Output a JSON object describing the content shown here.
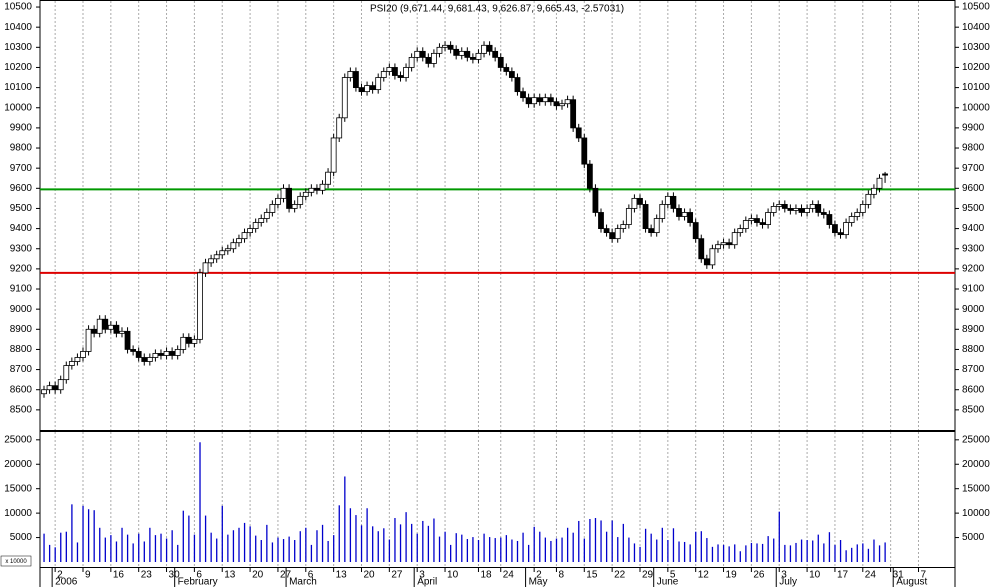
{
  "chart_data": [
    {
      "type": "candlestick",
      "title": "PSI20 (9,671.44, 9,681.43, 9,626.87, 9,665.43, -2.57031)",
      "categories": [
        "2005-12-29",
        "2005-12-30",
        "2006-01-02",
        "2006-01-03",
        "2006-01-04",
        "2006-01-05",
        "2006-01-06",
        "2006-01-09",
        "2006-01-10",
        "2006-01-11",
        "2006-01-12",
        "2006-01-13",
        "2006-01-16",
        "2006-01-17",
        "2006-01-18",
        "2006-01-19",
        "2006-01-20",
        "2006-01-23",
        "2006-01-24",
        "2006-01-25",
        "2006-01-26",
        "2006-01-27",
        "2006-01-30",
        "2006-01-31",
        "2006-02-01",
        "2006-02-02",
        "2006-02-03",
        "2006-02-06",
        "2006-02-07",
        "2006-02-08",
        "2006-02-09",
        "2006-02-10",
        "2006-02-13",
        "2006-02-14",
        "2006-02-15",
        "2006-02-16",
        "2006-02-17",
        "2006-02-20",
        "2006-02-21",
        "2006-02-22",
        "2006-02-23",
        "2006-02-24",
        "2006-02-27",
        "2006-02-28",
        "2006-03-01",
        "2006-03-02",
        "2006-03-03",
        "2006-03-06",
        "2006-03-07",
        "2006-03-08",
        "2006-03-09",
        "2006-03-10",
        "2006-03-13",
        "2006-03-14",
        "2006-03-15",
        "2006-03-16",
        "2006-03-17",
        "2006-03-20",
        "2006-03-21",
        "2006-03-22",
        "2006-03-23",
        "2006-03-24",
        "2006-03-27",
        "2006-03-28",
        "2006-03-29",
        "2006-03-30",
        "2006-03-31",
        "2006-04-03",
        "2006-04-04",
        "2006-04-05",
        "2006-04-06",
        "2006-04-07",
        "2006-04-10",
        "2006-04-11",
        "2006-04-12",
        "2006-04-13",
        "2006-04-14",
        "2006-04-17",
        "2006-04-18",
        "2006-04-19",
        "2006-04-20",
        "2006-04-21",
        "2006-04-24",
        "2006-04-25",
        "2006-04-26",
        "2006-04-27",
        "2006-04-28",
        "2006-05-01",
        "2006-05-02",
        "2006-05-03",
        "2006-05-04",
        "2006-05-05",
        "2006-05-08",
        "2006-05-09",
        "2006-05-10",
        "2006-05-11",
        "2006-05-12",
        "2006-05-15",
        "2006-05-16",
        "2006-05-17",
        "2006-05-18",
        "2006-05-19",
        "2006-05-22",
        "2006-05-23",
        "2006-05-24",
        "2006-05-25",
        "2006-05-26",
        "2006-05-29",
        "2006-05-30",
        "2006-05-31",
        "2006-06-01",
        "2006-06-02",
        "2006-06-05",
        "2006-06-06",
        "2006-06-07",
        "2006-06-08",
        "2006-06-09",
        "2006-06-12",
        "2006-06-13",
        "2006-06-14",
        "2006-06-15",
        "2006-06-16",
        "2006-06-19",
        "2006-06-20",
        "2006-06-21",
        "2006-06-22",
        "2006-06-23",
        "2006-06-26",
        "2006-06-27",
        "2006-06-28",
        "2006-06-29",
        "2006-06-30",
        "2006-07-03",
        "2006-07-04",
        "2006-07-05",
        "2006-07-06",
        "2006-07-07",
        "2006-07-10",
        "2006-07-11",
        "2006-07-12",
        "2006-07-13",
        "2006-07-14",
        "2006-07-17",
        "2006-07-18",
        "2006-07-19",
        "2006-07-20",
        "2006-07-21",
        "2006-07-24",
        "2006-07-25",
        "2006-07-26",
        "2006-07-27",
        "2006-07-28",
        "2006-07-31",
        "2006-08-01",
        "2006-08-02",
        "2006-08-03",
        "2006-08-04",
        "2006-08-07",
        "2006-08-08",
        "2006-08-09",
        "2006-08-10",
        "2006-08-11",
        "2006-08-14",
        "2006-08-15"
      ],
      "open": [
        8580,
        8600,
        8620,
        8600,
        8650,
        8720,
        8740,
        8760,
        8790,
        8900,
        8880,
        8950,
        8900,
        8920,
        8880,
        8890,
        8800,
        8790,
        8760,
        8740,
        8760,
        8780,
        8770,
        8790,
        8770,
        8800,
        8860,
        8830,
        8850,
        9180,
        9230,
        9250,
        9270,
        9290,
        9300,
        9330,
        9350,
        9380,
        9400,
        9430,
        9450,
        9480,
        9520,
        9550,
        9600,
        9500,
        9520,
        9560,
        9580,
        9600,
        9590,
        9620,
        9680,
        9850,
        9950,
        10150,
        10180,
        10100,
        10080,
        10110,
        10090,
        10150,
        10180,
        10200,
        10160,
        10150,
        10200,
        10250,
        10280,
        10250,
        10220,
        10270,
        10300,
        10310,
        10290,
        10260,
        10280,
        10250,
        10240,
        10270,
        10310,
        10280,
        10250,
        10200,
        10180,
        10150,
        10080,
        10050,
        10020,
        10050,
        10030,
        10050,
        10030,
        10010,
        10020,
        10040,
        9900,
        9850,
        9720,
        9600,
        9480,
        9400,
        9380,
        9350,
        9400,
        9420,
        9500,
        9550,
        9520,
        9400,
        9380,
        9450,
        9520,
        9560,
        9500,
        9460,
        9480,
        9430,
        9350,
        9250,
        9220,
        9300,
        9320,
        9330,
        9320,
        9380,
        9400,
        9440,
        9450,
        9430,
        9420,
        9480,
        9510,
        9520,
        9500,
        9490,
        9500,
        9480,
        9500,
        9520,
        9480,
        9470,
        9420,
        9380,
        9370,
        9430,
        9460,
        9480,
        9520,
        9570,
        9600,
        9671.44,
        null,
        null,
        null,
        null,
        null,
        null,
        null,
        null,
        null,
        null,
        null,
        null
      ],
      "high": [
        8620,
        8640,
        8640,
        8670,
        8740,
        8760,
        8780,
        8810,
        8920,
        8920,
        8970,
        8970,
        8940,
        8940,
        8910,
        8910,
        8820,
        8810,
        8780,
        8780,
        8800,
        8800,
        8810,
        8810,
        8820,
        8880,
        8880,
        8870,
        9200,
        9250,
        9270,
        9290,
        9310,
        9320,
        9350,
        9370,
        9400,
        9420,
        9450,
        9470,
        9500,
        9540,
        9570,
        9620,
        9620,
        9540,
        9580,
        9600,
        9620,
        9620,
        9640,
        9700,
        9870,
        9970,
        10170,
        10200,
        10200,
        10120,
        10130,
        10130,
        10170,
        10200,
        10220,
        10220,
        10180,
        10220,
        10270,
        10300,
        10300,
        10270,
        10290,
        10320,
        10330,
        10330,
        10310,
        10300,
        10300,
        10270,
        10290,
        10330,
        10330,
        10300,
        10270,
        10220,
        10200,
        10170,
        10100,
        10070,
        10070,
        10070,
        10070,
        10070,
        10050,
        10040,
        10060,
        10060,
        9920,
        9870,
        9740,
        9620,
        9500,
        9420,
        9400,
        9420,
        9440,
        9520,
        9570,
        9570,
        9540,
        9420,
        9470,
        9540,
        9580,
        9580,
        9520,
        9500,
        9500,
        9450,
        9370,
        9270,
        9320,
        9340,
        9350,
        9350,
        9400,
        9420,
        9460,
        9470,
        9470,
        9450,
        9500,
        9530,
        9540,
        9540,
        9520,
        9520,
        9520,
        9520,
        9540,
        9540,
        9500,
        9490,
        9440,
        9400,
        9450,
        9480,
        9500,
        9540,
        9590,
        9620,
        9670,
        9681.43,
        null,
        null,
        null,
        null,
        null,
        null,
        null,
        null,
        null,
        null,
        null,
        null
      ],
      "low": [
        8560,
        8580,
        8580,
        8580,
        8630,
        8700,
        8720,
        8740,
        8770,
        8860,
        8860,
        8880,
        8880,
        8860,
        8860,
        8780,
        8770,
        8740,
        8720,
        8720,
        8740,
        8750,
        8750,
        8750,
        8750,
        8780,
        8810,
        8810,
        8830,
        9160,
        9210,
        9230,
        9250,
        9270,
        9280,
        9310,
        9330,
        9360,
        9380,
        9410,
        9430,
        9460,
        9500,
        9530,
        9480,
        9480,
        9500,
        9540,
        9560,
        9570,
        9570,
        9600,
        9660,
        9830,
        9930,
        10130,
        10080,
        10060,
        10060,
        10070,
        10070,
        10130,
        10160,
        10140,
        10130,
        10130,
        10180,
        10230,
        10230,
        10200,
        10200,
        10250,
        10280,
        10270,
        10240,
        10240,
        10230,
        10220,
        10220,
        10250,
        10260,
        10230,
        10180,
        10160,
        10130,
        10060,
        10030,
        10000,
        10000,
        10010,
        10010,
        10010,
        9990,
        9990,
        10000,
        9880,
        9830,
        9700,
        9580,
        9460,
        9380,
        9360,
        9330,
        9330,
        9380,
        9400,
        9480,
        9500,
        9380,
        9360,
        9360,
        9430,
        9500,
        9480,
        9440,
        9440,
        9410,
        9330,
        9230,
        9200,
        9200,
        9280,
        9300,
        9300,
        9300,
        9360,
        9380,
        9420,
        9410,
        9400,
        9400,
        9460,
        9490,
        9480,
        9470,
        9470,
        9460,
        9460,
        9480,
        9460,
        9450,
        9400,
        9360,
        9350,
        9350,
        9410,
        9440,
        9460,
        9500,
        9550,
        9580,
        9626.87,
        null,
        null,
        null,
        null,
        null,
        null,
        null,
        null,
        null,
        null,
        null,
        null
      ],
      "close": [
        8600,
        8620,
        8600,
        8650,
        8720,
        8740,
        8760,
        8790,
        8900,
        8880,
        8950,
        8900,
        8920,
        8880,
        8890,
        8800,
        8790,
        8760,
        8740,
        8760,
        8780,
        8770,
        8790,
        8770,
        8800,
        8860,
        8830,
        8850,
        9180,
        9230,
        9250,
        9270,
        9290,
        9300,
        9330,
        9350,
        9380,
        9400,
        9430,
        9450,
        9480,
        9520,
        9550,
        9600,
        9500,
        9520,
        9560,
        9580,
        9600,
        9590,
        9620,
        9680,
        9850,
        9950,
        10150,
        10180,
        10100,
        10080,
        10110,
        10090,
        10150,
        10180,
        10200,
        10160,
        10150,
        10200,
        10250,
        10280,
        10250,
        10220,
        10270,
        10300,
        10310,
        10290,
        10260,
        10280,
        10250,
        10240,
        10270,
        10310,
        10280,
        10250,
        10200,
        10180,
        10150,
        10080,
        10050,
        10020,
        10050,
        10030,
        10050,
        10030,
        10010,
        10020,
        10040,
        9900,
        9850,
        9720,
        9600,
        9480,
        9400,
        9380,
        9350,
        9400,
        9420,
        9500,
        9550,
        9520,
        9400,
        9380,
        9450,
        9520,
        9560,
        9500,
        9460,
        9480,
        9430,
        9350,
        9250,
        9220,
        9300,
        9320,
        9330,
        9320,
        9380,
        9400,
        9440,
        9450,
        9430,
        9420,
        9480,
        9510,
        9520,
        9500,
        9490,
        9500,
        9480,
        9500,
        9520,
        9480,
        9470,
        9420,
        9380,
        9370,
        9430,
        9460,
        9480,
        9520,
        9570,
        9600,
        9650,
        9665.43,
        null,
        null,
        null,
        null,
        null,
        null,
        null,
        null,
        null,
        null,
        null,
        null
      ],
      "ylim": [
        8400,
        10530
      ],
      "yticks": [
        8500,
        8600,
        8700,
        8800,
        8900,
        9000,
        9100,
        9200,
        9300,
        9400,
        9500,
        9600,
        9700,
        9800,
        9900,
        10000,
        10100,
        10200,
        10300,
        10400,
        10500
      ],
      "hlines": [
        {
          "value": 9595,
          "color": "#009900"
        },
        {
          "value": 9180,
          "color": "#dd0000"
        }
      ],
      "xticks": [
        {
          "value": "2006-01-02",
          "label": "2"
        },
        {
          "value": "2006-01-09",
          "label": "9"
        },
        {
          "value": "2006-01-16",
          "label": "16"
        },
        {
          "value": "2006-01-23",
          "label": "23"
        },
        {
          "value": "2006-01-30",
          "label": "30"
        },
        {
          "value": "2006-02-06",
          "label": "6"
        },
        {
          "value": "2006-02-13",
          "label": "13"
        },
        {
          "value": "2006-02-20",
          "label": "20"
        },
        {
          "value": "2006-02-27",
          "label": "27"
        },
        {
          "value": "2006-03-06",
          "label": "6"
        },
        {
          "value": "2006-03-13",
          "label": "13"
        },
        {
          "value": "2006-03-20",
          "label": "20"
        },
        {
          "value": "2006-03-27",
          "label": "27"
        },
        {
          "value": "2006-04-03",
          "label": "3"
        },
        {
          "value": "2006-04-10",
          "label": "10"
        },
        {
          "value": "2006-04-18",
          "label": "18"
        },
        {
          "value": "2006-04-24",
          "label": "24"
        },
        {
          "value": "2006-05-02",
          "label": "2"
        },
        {
          "value": "2006-05-08",
          "label": "8"
        },
        {
          "value": "2006-05-15",
          "label": "15"
        },
        {
          "value": "2006-05-22",
          "label": "22"
        },
        {
          "value": "2006-05-29",
          "label": "29"
        },
        {
          "value": "2006-06-05",
          "label": "5"
        },
        {
          "value": "2006-06-12",
          "label": "12"
        },
        {
          "value": "2006-06-19",
          "label": "19"
        },
        {
          "value": "2006-06-26",
          "label": "26"
        },
        {
          "value": "2006-07-03",
          "label": "3"
        },
        {
          "value": "2006-07-10",
          "label": "10"
        },
        {
          "value": "2006-07-17",
          "label": "17"
        },
        {
          "value": "2006-07-24",
          "label": "24"
        },
        {
          "value": "2006-07-31",
          "label": "31"
        },
        {
          "value": "2006-08-07",
          "label": "7"
        }
      ],
      "months": [
        {
          "value": "2006-01-02",
          "label": "2006"
        },
        {
          "value": "2006-02-01",
          "label": "February"
        },
        {
          "value": "2006-03-01",
          "label": "March"
        },
        {
          "value": "2006-04-03",
          "label": "April"
        },
        {
          "value": "2006-05-01",
          "label": "May"
        },
        {
          "value": "2006-06-01",
          "label": "June"
        },
        {
          "value": "2006-07-03",
          "label": "July"
        },
        {
          "value": "2006-08-01",
          "label": "August"
        }
      ]
    },
    {
      "type": "bar",
      "values": [
        5800,
        3500,
        3000,
        6000,
        6200,
        11800,
        4000,
        11500,
        10800,
        10600,
        7000,
        5000,
        5500,
        4200,
        7000,
        5600,
        3800,
        5800,
        4200,
        7000,
        5500,
        5800,
        4800,
        6500,
        3500,
        10500,
        9500,
        5600,
        24500,
        9500,
        6000,
        4800,
        11500,
        5600,
        6500,
        7000,
        8000,
        7300,
        5400,
        4500,
        7600,
        4000,
        5000,
        4700,
        5200,
        4500,
        6300,
        7000,
        3500,
        6500,
        7600,
        4300,
        5500,
        11600,
        17500,
        11000,
        9600,
        7500,
        11000,
        7300,
        6300,
        6900,
        4600,
        9000,
        7700,
        10200,
        7800,
        5800,
        8400,
        7400,
        8900,
        5200,
        6200,
        3500,
        5900,
        5600,
        4700,
        5100,
        4500,
        5800,
        5100,
        4900,
        5000,
        5500,
        4600,
        4300,
        6000,
        3500,
        7200,
        6200,
        5000,
        4300,
        4800,
        5000,
        7000,
        6000,
        8400,
        4800,
        8800,
        9000,
        8500,
        6200,
        8500,
        5100,
        7800,
        5000,
        3800,
        3100,
        6800,
        5800,
        4600,
        7000,
        4500,
        6900,
        4200,
        4100,
        3600,
        6200,
        6300,
        4900,
        3100,
        3600,
        3500,
        3200,
        3600,
        2200,
        3400,
        3900,
        3800,
        3700,
        5300,
        4800,
        10300,
        3500,
        3400,
        3900,
        4600,
        4500,
        4400,
        5600,
        3800,
        6100,
        3500,
        4500,
        2400,
        2900,
        3600,
        3800,
        2700,
        4600,
        3400,
        4000,
        null,
        null,
        null,
        null,
        null,
        null,
        null,
        null,
        null,
        null,
        null,
        null
      ],
      "color": "#0000cc",
      "ylim": [
        0,
        26600
      ],
      "yticks": [
        5000,
        10000,
        15000,
        20000,
        25000
      ],
      "unit_label": "x 10000"
    }
  ]
}
